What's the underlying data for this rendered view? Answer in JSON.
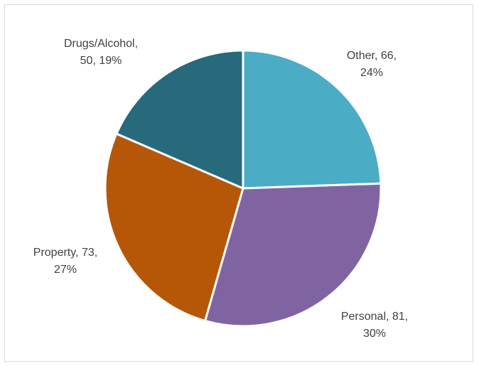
{
  "chart_data": {
    "type": "pie",
    "title": "",
    "slices": [
      {
        "name": "Other",
        "value": 66,
        "percent": "24%",
        "color": "#4bacc6",
        "label_line1": "Other, 66,",
        "label_line2": "24%"
      },
      {
        "name": "Personal",
        "value": 81,
        "percent": "30%",
        "color": "#8064a2",
        "label_line1": "Personal, 81,",
        "label_line2": "30%"
      },
      {
        "name": "Property",
        "value": 73,
        "percent": "27%",
        "color": "#b65708",
        "label_line1": "Property, 73,",
        "label_line2": "27%"
      },
      {
        "name": "Drugs/Alcohol",
        "value": 50,
        "percent": "19%",
        "color": "#276a7c",
        "label_line1": "Drugs/Alcohol,",
        "label_line2": "50, 19%"
      }
    ],
    "start_angle_deg": 0,
    "direction": "clockwise",
    "legend": "none"
  }
}
